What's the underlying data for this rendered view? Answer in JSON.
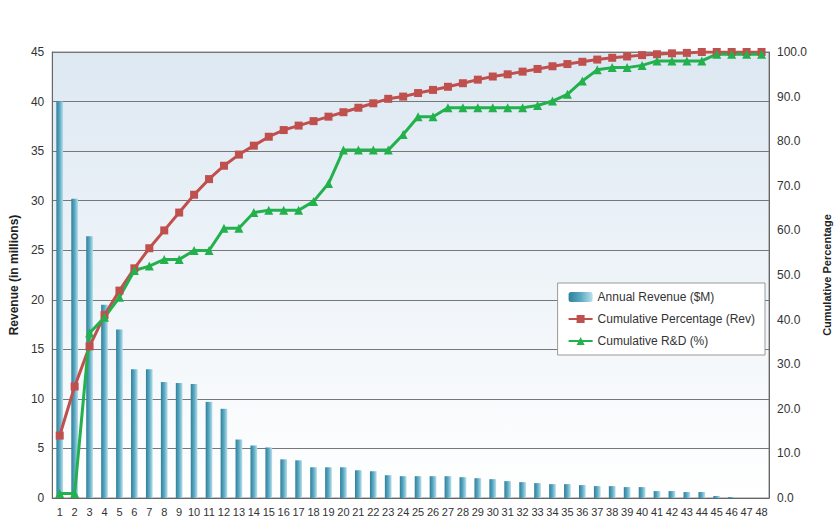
{
  "chart_data": {
    "type": "bar",
    "categories": [
      "1",
      "2",
      "3",
      "4",
      "5",
      "6",
      "7",
      "8",
      "9",
      "10",
      "11",
      "12",
      "13",
      "14",
      "15",
      "16",
      "17",
      "18",
      "19",
      "20",
      "21",
      "22",
      "23",
      "24",
      "25",
      "26",
      "27",
      "28",
      "29",
      "30",
      "31",
      "32",
      "33",
      "34",
      "35",
      "36",
      "37",
      "38",
      "39",
      "40",
      "41",
      "42",
      "43",
      "44",
      "45",
      "46",
      "47",
      "48"
    ],
    "ylabel": "Revenue (in millions)",
    "y2label": "Cumulative Percentage",
    "ylim": [
      0,
      45
    ],
    "yticks": [
      0,
      5,
      10,
      15,
      20,
      25,
      30,
      35,
      40,
      45
    ],
    "y2lim": [
      0,
      100
    ],
    "y2ticks": [
      {
        "value": 0,
        "label": "0.0"
      },
      {
        "value": 10,
        "label": "10.0"
      },
      {
        "value": 20,
        "label": "20.0"
      },
      {
        "value": 30,
        "label": "30.0"
      },
      {
        "value": 40,
        "label": "40.0"
      },
      {
        "value": 50,
        "label": "50.0"
      },
      {
        "value": 60,
        "label": "60.0"
      },
      {
        "value": 70,
        "label": "70.0"
      },
      {
        "value": 80,
        "label": "80.0"
      },
      {
        "value": 90,
        "label": "90.0"
      },
      {
        "value": 100,
        "label": "100.0"
      }
    ],
    "grid": true,
    "legend": "right",
    "series": [
      {
        "name": "Annual Revenue ($M)",
        "type": "bar",
        "color": "#5ba9c2",
        "values": [
          40,
          30.2,
          26.4,
          19.5,
          17,
          13,
          13,
          11.7,
          11.6,
          11.5,
          9.7,
          9.0,
          5.9,
          5.3,
          5.1,
          3.9,
          3.8,
          3.1,
          3.1,
          3.1,
          2.8,
          2.7,
          2.3,
          2.2,
          2.2,
          2.2,
          2.2,
          2.1,
          2.0,
          1.9,
          1.7,
          1.6,
          1.5,
          1.4,
          1.4,
          1.3,
          1.2,
          1.2,
          1.1,
          1.1,
          0.7,
          0.7,
          0.6,
          0.6,
          0.2,
          0.1,
          0,
          0
        ]
      },
      {
        "name": "Cumulative Percentage (Rev)",
        "type": "line",
        "axis": "y2",
        "color": "#c0504d",
        "marker": "square",
        "values": [
          14,
          25,
          34,
          41,
          46.5,
          51.5,
          56,
          60,
          64,
          68,
          71.5,
          74.5,
          77,
          79,
          81,
          82.5,
          83.5,
          84.5,
          85.5,
          86.5,
          87.5,
          88.5,
          89.5,
          90,
          90.8,
          91.5,
          92.2,
          93,
          93.8,
          94.5,
          95,
          95.6,
          96.2,
          96.8,
          97.3,
          97.8,
          98.3,
          98.7,
          99,
          99.3,
          99.5,
          99.7,
          99.8,
          100,
          100,
          100,
          100,
          100
        ]
      },
      {
        "name": "Cumulative R&D (%)",
        "type": "line",
        "axis": "y2",
        "color": "#22b14c",
        "marker": "triangle",
        "values": [
          1,
          1,
          37,
          40.5,
          45,
          51,
          52,
          53.5,
          53.5,
          55.5,
          55.5,
          60.5,
          60.5,
          64,
          64.5,
          64.5,
          64.5,
          66.5,
          70.5,
          78,
          78,
          78,
          78,
          81.5,
          85.5,
          85.5,
          87.5,
          87.5,
          87.5,
          87.5,
          87.5,
          87.5,
          88,
          89,
          90.5,
          93.5,
          96,
          96.5,
          96.5,
          97,
          98,
          98,
          98,
          98,
          99.5,
          99.5,
          99.5,
          99.5
        ]
      }
    ]
  }
}
